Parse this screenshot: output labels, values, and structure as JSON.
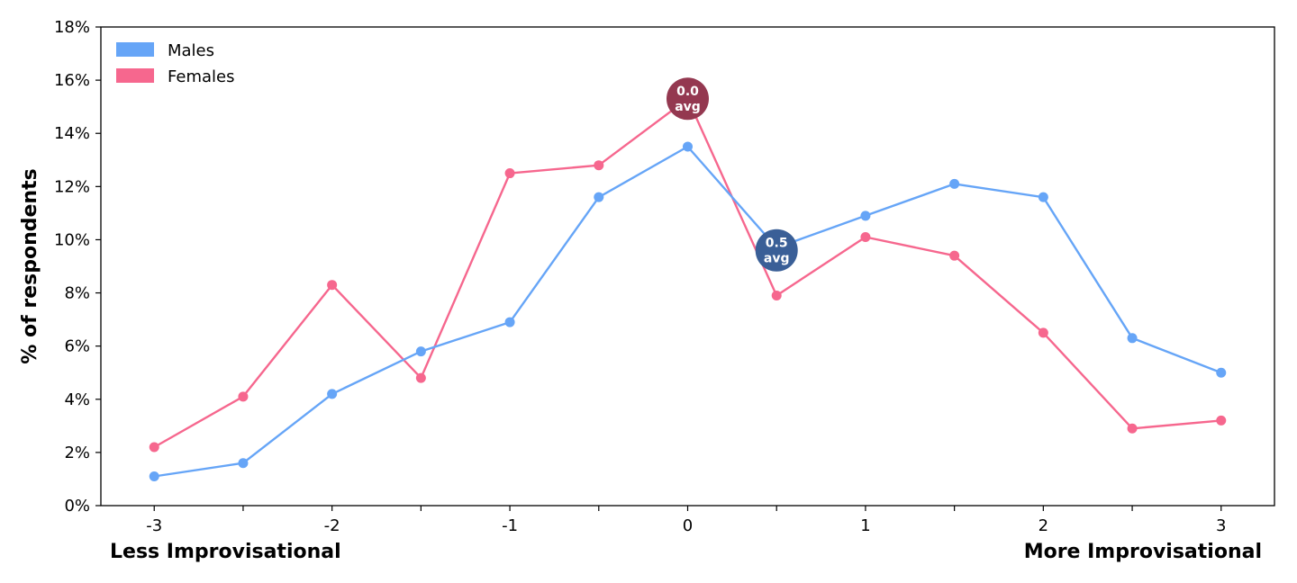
{
  "chart_data": {
    "type": "line",
    "x": [
      -3,
      -2.5,
      -2,
      -1.5,
      -1,
      -0.5,
      0,
      0.5,
      1,
      1.5,
      2,
      2.5,
      3
    ],
    "xticks": [
      -3,
      -2.5,
      -2,
      -1.5,
      -1,
      -0.5,
      0,
      0.5,
      1,
      1.5,
      2,
      2.5,
      3
    ],
    "xtick_labels": [
      "-3",
      "",
      "-2",
      "",
      "-1",
      "",
      "0",
      "",
      "1",
      "",
      "2",
      "",
      "3"
    ],
    "xlim": [
      -3.3,
      3.3
    ],
    "ylim": [
      0,
      18
    ],
    "yticks": [
      0,
      2,
      4,
      6,
      8,
      10,
      12,
      14,
      16,
      18
    ],
    "ytick_labels": [
      "0%",
      "2%",
      "4%",
      "6%",
      "8%",
      "10%",
      "12%",
      "14%",
      "16%",
      "18%"
    ],
    "ylabel": "% of respondents",
    "x_left_label": "Less Improvisational",
    "x_right_label": "More Improvisational",
    "legend_position": "top-left",
    "grid": false,
    "series": [
      {
        "name": "Males",
        "color": "#66a5f7",
        "values": [
          1.1,
          1.6,
          4.2,
          5.8,
          6.9,
          11.6,
          13.5,
          9.7,
          10.9,
          12.1,
          11.6,
          6.3,
          5.0
        ]
      },
      {
        "name": "Females",
        "color": "#f6678e",
        "values": [
          2.2,
          4.1,
          8.3,
          4.8,
          12.5,
          12.8,
          15.3,
          7.9,
          10.1,
          9.4,
          6.5,
          2.9,
          3.2
        ]
      }
    ],
    "annotations": [
      {
        "x": 0,
        "y": 15.3,
        "line1": "0.0",
        "line2": "avg",
        "color": "#943850"
      },
      {
        "x": 0.5,
        "y": 9.6,
        "line1": "0.5",
        "line2": "avg",
        "color": "#3a5f97"
      }
    ]
  }
}
